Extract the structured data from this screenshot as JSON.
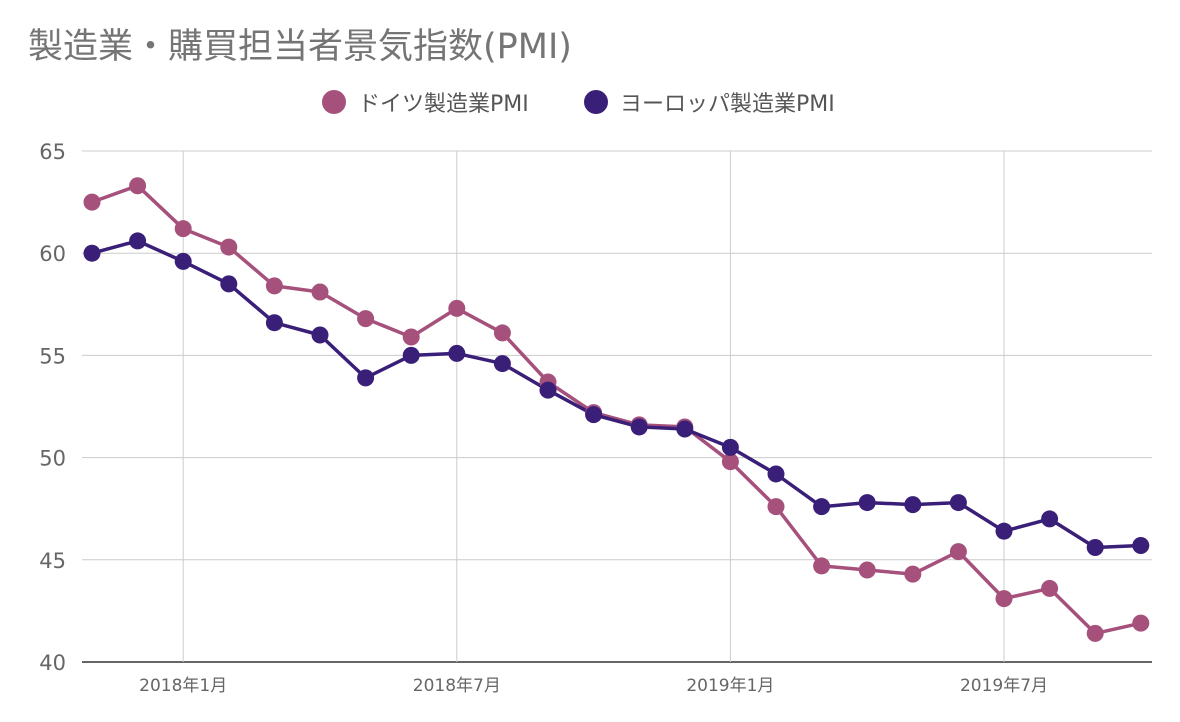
{
  "chart_data": {
    "type": "line",
    "title": "製造業・購買担当者景気指数(PMI)",
    "xlabel": "",
    "ylabel": "",
    "ylim": [
      40,
      65
    ],
    "y_ticks": [
      "65",
      "60",
      "55",
      "50",
      "45",
      "40"
    ],
    "x_tick_labels": [
      "2018年1月",
      "2018年7月",
      "2019年1月",
      "2019年7月"
    ],
    "x": [
      "2017-11",
      "2017-12",
      "2018-01",
      "2018-02",
      "2018-03",
      "2018-04",
      "2018-05",
      "2018-06",
      "2018-07",
      "2018-08",
      "2018-09",
      "2018-10",
      "2018-11",
      "2018-12",
      "2019-01",
      "2019-02",
      "2019-03",
      "2019-04",
      "2019-05",
      "2019-06",
      "2019-07",
      "2019-08",
      "2019-09",
      "2019-10"
    ],
    "grid": true,
    "legend_position": "top",
    "series": [
      {
        "name": "ドイツ製造業PMI",
        "color": "#a5517c",
        "values": [
          62.5,
          63.3,
          61.2,
          60.3,
          58.4,
          58.1,
          56.8,
          55.9,
          57.3,
          56.1,
          53.7,
          52.2,
          51.6,
          51.5,
          49.8,
          47.6,
          44.7,
          44.5,
          44.3,
          45.4,
          43.1,
          43.6,
          41.4,
          41.9
        ]
      },
      {
        "name": "ヨーロッパ製造業PMI",
        "color": "#3a1f78",
        "values": [
          60.0,
          60.6,
          59.6,
          58.5,
          56.6,
          56.0,
          53.9,
          55.0,
          55.1,
          54.6,
          53.3,
          52.1,
          51.5,
          51.4,
          50.5,
          49.2,
          47.6,
          47.8,
          47.7,
          47.8,
          46.4,
          47.0,
          45.6,
          45.7
        ]
      }
    ]
  }
}
